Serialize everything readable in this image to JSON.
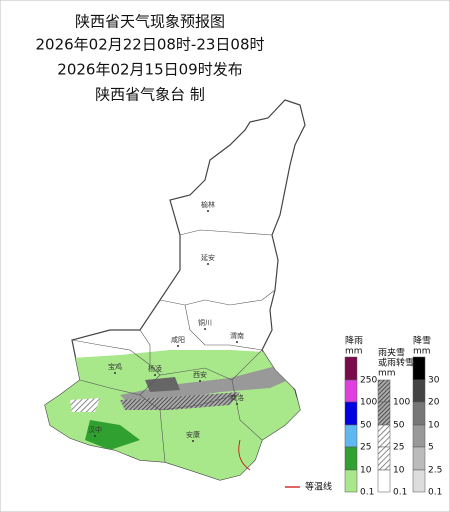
{
  "header": {
    "lines": [
      "陕西省天气现象预报图",
      "2026年02月22日08时-23日08时",
      "2026年02月15日09时发布",
      "陕西省气象台 制"
    ]
  },
  "cities": [
    {
      "label": "榆林"
    },
    {
      "label": "延安"
    },
    {
      "label": "铜川"
    },
    {
      "label": "渭南"
    },
    {
      "label": "咸阳"
    },
    {
      "label": "宝鸡"
    },
    {
      "label": "杨凌"
    },
    {
      "label": "西安"
    },
    {
      "label": "商洛"
    },
    {
      "label": "汉中"
    },
    {
      "label": "安康"
    }
  ],
  "legend": {
    "rain": {
      "title": "降雨",
      "unit": "mm",
      "ticks": [
        250,
        100,
        50,
        25,
        10,
        0.1
      ]
    },
    "sleet": {
      "title": [
        "雨夹雪",
        "或雨转雪"
      ],
      "unit": "mm",
      "ticks": [
        100,
        50,
        25,
        10,
        0.1
      ]
    },
    "snow": {
      "title": "降雪",
      "unit": "mm",
      "ticks": [
        30,
        20,
        10,
        5,
        2.5,
        0.1
      ]
    },
    "isotherm": "等温线"
  }
}
